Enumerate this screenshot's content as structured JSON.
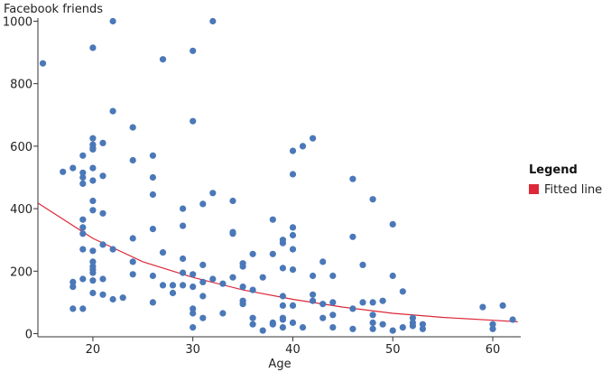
{
  "chart_data": {
    "type": "scatter",
    "xlabel": "Age",
    "ylabel": "Facebook friends",
    "xlim": [
      14.5,
      62.8
    ],
    "ylim": [
      -10,
      1010
    ],
    "xticks": [
      20,
      30,
      40,
      50,
      60
    ],
    "yticks": [
      0,
      200,
      400,
      600,
      800,
      1000
    ],
    "grid": false,
    "legend": {
      "title": "Legend",
      "placement": "right",
      "entries": [
        {
          "label": "Fitted line",
          "color": "#dc2838"
        }
      ]
    },
    "colors": {
      "points": "#4a78b8",
      "fitted_line": "#dc2838",
      "axis": "#333333"
    },
    "points": [
      [
        15,
        865
      ],
      [
        17,
        518
      ],
      [
        18,
        530
      ],
      [
        18,
        165
      ],
      [
        18,
        150
      ],
      [
        18,
        80
      ],
      [
        19,
        570
      ],
      [
        19,
        515
      ],
      [
        19,
        500
      ],
      [
        19,
        480
      ],
      [
        19,
        365
      ],
      [
        19,
        340
      ],
      [
        19,
        320
      ],
      [
        19,
        270
      ],
      [
        19,
        175
      ],
      [
        19,
        80
      ],
      [
        20,
        915
      ],
      [
        20,
        625
      ],
      [
        20,
        605
      ],
      [
        20,
        595
      ],
      [
        20,
        590
      ],
      [
        20,
        530
      ],
      [
        20,
        490
      ],
      [
        20,
        425
      ],
      [
        20,
        395
      ],
      [
        20,
        265
      ],
      [
        20,
        230
      ],
      [
        20,
        215
      ],
      [
        20,
        205
      ],
      [
        20,
        195
      ],
      [
        20,
        170
      ],
      [
        20,
        130
      ],
      [
        21,
        610
      ],
      [
        21,
        505
      ],
      [
        21,
        385
      ],
      [
        21,
        285
      ],
      [
        21,
        175
      ],
      [
        21,
        125
      ],
      [
        22,
        1000
      ],
      [
        22,
        712
      ],
      [
        22,
        270
      ],
      [
        22,
        110
      ],
      [
        23,
        115
      ],
      [
        24,
        660
      ],
      [
        24,
        555
      ],
      [
        24,
        305
      ],
      [
        24,
        230
      ],
      [
        24,
        190
      ],
      [
        26,
        570
      ],
      [
        26,
        500
      ],
      [
        26,
        445
      ],
      [
        26,
        335
      ],
      [
        26,
        185
      ],
      [
        26,
        100
      ],
      [
        27,
        878
      ],
      [
        27,
        260
      ],
      [
        27,
        155
      ],
      [
        28,
        155
      ],
      [
        28,
        130
      ],
      [
        29,
        400
      ],
      [
        29,
        345
      ],
      [
        29,
        240
      ],
      [
        29,
        195
      ],
      [
        29,
        155
      ],
      [
        30,
        905
      ],
      [
        30,
        680
      ],
      [
        30,
        190
      ],
      [
        30,
        150
      ],
      [
        30,
        80
      ],
      [
        30,
        65
      ],
      [
        30,
        20
      ],
      [
        31,
        415
      ],
      [
        31,
        220
      ],
      [
        31,
        165
      ],
      [
        31,
        120
      ],
      [
        31,
        50
      ],
      [
        32,
        1000
      ],
      [
        32,
        450
      ],
      [
        32,
        175
      ],
      [
        33,
        160
      ],
      [
        33,
        65
      ],
      [
        34,
        425
      ],
      [
        34,
        325
      ],
      [
        34,
        320
      ],
      [
        34,
        180
      ],
      [
        35,
        225
      ],
      [
        35,
        215
      ],
      [
        35,
        150
      ],
      [
        35,
        105
      ],
      [
        35,
        95
      ],
      [
        36,
        255
      ],
      [
        36,
        140
      ],
      [
        36,
        50
      ],
      [
        36,
        30
      ],
      [
        37,
        180
      ],
      [
        37,
        10
      ],
      [
        38,
        365
      ],
      [
        38,
        255
      ],
      [
        38,
        35
      ],
      [
        38,
        30
      ],
      [
        39,
        300
      ],
      [
        39,
        290
      ],
      [
        39,
        210
      ],
      [
        39,
        120
      ],
      [
        39,
        90
      ],
      [
        39,
        50
      ],
      [
        39,
        45
      ],
      [
        39,
        20
      ],
      [
        40,
        585
      ],
      [
        40,
        510
      ],
      [
        40,
        340
      ],
      [
        40,
        315
      ],
      [
        40,
        270
      ],
      [
        40,
        205
      ],
      [
        40,
        90
      ],
      [
        40,
        35
      ],
      [
        41,
        600
      ],
      [
        41,
        20
      ],
      [
        42,
        625
      ],
      [
        42,
        185
      ],
      [
        42,
        125
      ],
      [
        42,
        105
      ],
      [
        43,
        230
      ],
      [
        43,
        95
      ],
      [
        43,
        50
      ],
      [
        44,
        185
      ],
      [
        44,
        100
      ],
      [
        44,
        60
      ],
      [
        44,
        20
      ],
      [
        46,
        495
      ],
      [
        46,
        310
      ],
      [
        46,
        80
      ],
      [
        46,
        15
      ],
      [
        47,
        220
      ],
      [
        47,
        100
      ],
      [
        48,
        430
      ],
      [
        48,
        100
      ],
      [
        48,
        60
      ],
      [
        48,
        35
      ],
      [
        48,
        15
      ],
      [
        49,
        105
      ],
      [
        49,
        30
      ],
      [
        50,
        350
      ],
      [
        50,
        185
      ],
      [
        50,
        10
      ],
      [
        51,
        135
      ],
      [
        51,
        20
      ],
      [
        52,
        50
      ],
      [
        52,
        35
      ],
      [
        52,
        25
      ],
      [
        53,
        30
      ],
      [
        53,
        15
      ],
      [
        59,
        85
      ],
      [
        60,
        30
      ],
      [
        60,
        15
      ],
      [
        61,
        90
      ],
      [
        62,
        45
      ]
    ],
    "fitted_line": {
      "model": "exponential",
      "points": [
        [
          14.5,
          418
        ],
        [
          20,
          305
        ],
        [
          25,
          230
        ],
        [
          30,
          180
        ],
        [
          35,
          140
        ],
        [
          40,
          110
        ],
        [
          45,
          85
        ],
        [
          50,
          65
        ],
        [
          55,
          52
        ],
        [
          60,
          43
        ],
        [
          62.5,
          38
        ]
      ]
    }
  }
}
